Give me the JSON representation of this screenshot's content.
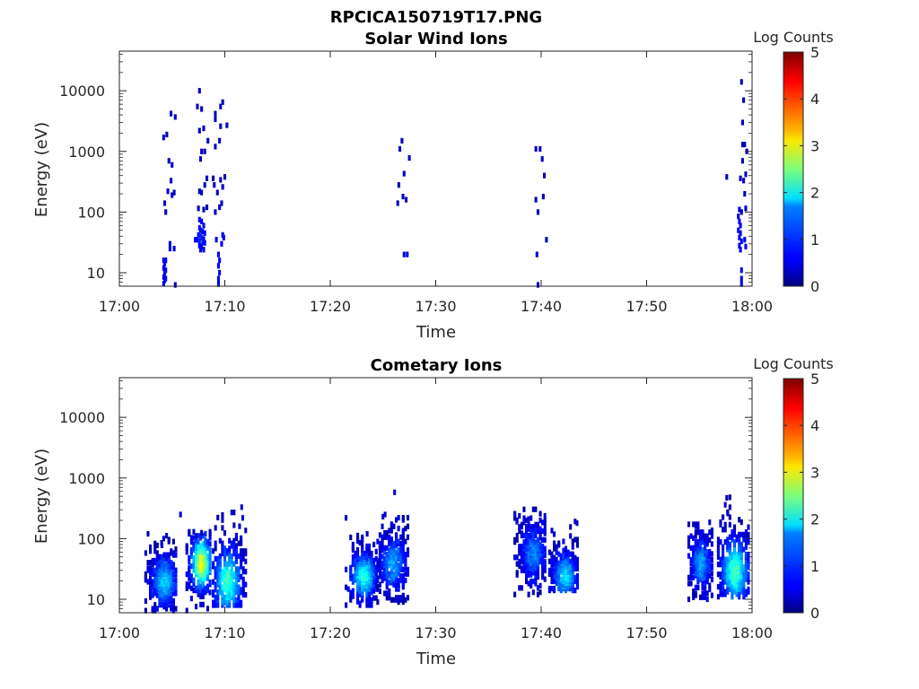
{
  "title": "RPCICA150719T17.PNG",
  "chart_data": [
    {
      "type": "heatmap",
      "title": "Solar Wind Ions",
      "xlabel": "Time",
      "ylabel": "Energy (eV)",
      "x_ticks": [
        "17:00",
        "17:10",
        "17:20",
        "17:30",
        "17:40",
        "17:50",
        "18:00"
      ],
      "y_ticks": [
        "10",
        "100",
        "1000",
        "10000"
      ],
      "y_scale": "log",
      "xlim": [
        "17:00",
        "18:00"
      ],
      "ylim": [
        6,
        45000
      ],
      "colorbar": {
        "label": "Log Counts",
        "ticks": [
          "0",
          "1",
          "2",
          "3",
          "4",
          "5"
        ],
        "range": [
          0,
          5
        ],
        "colormap": "jet"
      },
      "points": [
        {
          "t": 4.2,
          "e": 1700,
          "v": 0.3
        },
        {
          "t": 4.5,
          "e": 1900,
          "v": 0.3
        },
        {
          "t": 4.9,
          "e": 4200,
          "v": 0.3
        },
        {
          "t": 5.3,
          "e": 3700,
          "v": 0.3
        },
        {
          "t": 4.7,
          "e": 700,
          "v": 0.3
        },
        {
          "t": 5.0,
          "e": 600,
          "v": 0.3
        },
        {
          "t": 4.9,
          "e": 330,
          "v": 0.3
        },
        {
          "t": 4.6,
          "e": 220,
          "v": 0.3
        },
        {
          "t": 5.0,
          "e": 190,
          "v": 0.3
        },
        {
          "t": 5.2,
          "e": 210,
          "v": 0.3
        },
        {
          "t": 4.3,
          "e": 140,
          "v": 0.3
        },
        {
          "t": 4.4,
          "e": 100,
          "v": 0.3
        },
        {
          "t": 4.8,
          "e": 30,
          "v": 0.5
        },
        {
          "t": 4.8,
          "e": 25,
          "v": 0.5
        },
        {
          "t": 5.2,
          "e": 25,
          "v": 0.5
        },
        {
          "t": 4.2,
          "e": 16,
          "v": 0.6
        },
        {
          "t": 4.3,
          "e": 14,
          "v": 0.6
        },
        {
          "t": 4.4,
          "e": 16,
          "v": 0.6
        },
        {
          "t": 4.2,
          "e": 12,
          "v": 0.5
        },
        {
          "t": 4.3,
          "e": 10,
          "v": 0.5
        },
        {
          "t": 4.4,
          "e": 11,
          "v": 0.5
        },
        {
          "t": 4.2,
          "e": 8.5,
          "v": 0.5
        },
        {
          "t": 4.3,
          "e": 7.5,
          "v": 0.5
        },
        {
          "t": 4.4,
          "e": 8,
          "v": 0.5
        },
        {
          "t": 4.2,
          "e": 6.6,
          "v": 0.4
        },
        {
          "t": 5.3,
          "e": 6.3,
          "v": 0.3
        },
        {
          "t": 7.6,
          "e": 10000,
          "v": 0.3
        },
        {
          "t": 7.4,
          "e": 5500,
          "v": 0.3
        },
        {
          "t": 7.8,
          "e": 5000,
          "v": 0.3
        },
        {
          "t": 8.0,
          "e": 2400,
          "v": 0.3
        },
        {
          "t": 7.6,
          "e": 2200,
          "v": 0.3
        },
        {
          "t": 8.4,
          "e": 1500,
          "v": 0.3
        },
        {
          "t": 7.8,
          "e": 1000,
          "v": 0.3
        },
        {
          "t": 8.1,
          "e": 1000,
          "v": 0.3
        },
        {
          "t": 7.7,
          "e": 750,
          "v": 0.3
        },
        {
          "t": 8.3,
          "e": 360,
          "v": 0.3
        },
        {
          "t": 8.1,
          "e": 280,
          "v": 0.3
        },
        {
          "t": 7.6,
          "e": 220,
          "v": 0.3
        },
        {
          "t": 7.8,
          "e": 210,
          "v": 0.3
        },
        {
          "t": 7.5,
          "e": 115,
          "v": 0.3
        },
        {
          "t": 8.0,
          "e": 110,
          "v": 0.3
        },
        {
          "t": 8.3,
          "e": 120,
          "v": 0.3
        },
        {
          "t": 7.6,
          "e": 75,
          "v": 0.6
        },
        {
          "t": 7.8,
          "e": 70,
          "v": 0.6
        },
        {
          "t": 8.0,
          "e": 60,
          "v": 0.6
        },
        {
          "t": 7.6,
          "e": 55,
          "v": 0.7
        },
        {
          "t": 7.7,
          "e": 50,
          "v": 0.7
        },
        {
          "t": 7.9,
          "e": 48,
          "v": 0.7
        },
        {
          "t": 8.1,
          "e": 45,
          "v": 0.6
        },
        {
          "t": 7.5,
          "e": 42,
          "v": 0.7
        },
        {
          "t": 7.7,
          "e": 40,
          "v": 0.8
        },
        {
          "t": 7.8,
          "e": 38,
          "v": 0.8
        },
        {
          "t": 8.0,
          "e": 36,
          "v": 0.7
        },
        {
          "t": 7.2,
          "e": 35,
          "v": 0.6
        },
        {
          "t": 7.4,
          "e": 35,
          "v": 0.6
        },
        {
          "t": 7.6,
          "e": 33,
          "v": 0.8
        },
        {
          "t": 7.9,
          "e": 32,
          "v": 0.7
        },
        {
          "t": 8.1,
          "e": 31,
          "v": 0.6
        },
        {
          "t": 7.6,
          "e": 28,
          "v": 0.6
        },
        {
          "t": 7.8,
          "e": 27,
          "v": 0.6
        },
        {
          "t": 7.7,
          "e": 24,
          "v": 0.5
        },
        {
          "t": 8.0,
          "e": 24,
          "v": 0.5
        },
        {
          "t": 9.1,
          "e": 4200,
          "v": 0.3
        },
        {
          "t": 9.8,
          "e": 6500,
          "v": 0.3
        },
        {
          "t": 9.6,
          "e": 5500,
          "v": 0.3
        },
        {
          "t": 9.1,
          "e": 3400,
          "v": 0.3
        },
        {
          "t": 9.6,
          "e": 2600,
          "v": 0.3
        },
        {
          "t": 10.2,
          "e": 2700,
          "v": 0.3
        },
        {
          "t": 9.5,
          "e": 1500,
          "v": 0.3
        },
        {
          "t": 9.1,
          "e": 1200,
          "v": 0.3
        },
        {
          "t": 8.9,
          "e": 360,
          "v": 0.3
        },
        {
          "t": 9.6,
          "e": 340,
          "v": 0.3
        },
        {
          "t": 10.0,
          "e": 380,
          "v": 0.3
        },
        {
          "t": 9.0,
          "e": 280,
          "v": 0.3
        },
        {
          "t": 9.8,
          "e": 260,
          "v": 0.3
        },
        {
          "t": 9.3,
          "e": 210,
          "v": 0.3
        },
        {
          "t": 9.7,
          "e": 140,
          "v": 0.3
        },
        {
          "t": 9.5,
          "e": 120,
          "v": 0.3
        },
        {
          "t": 9.1,
          "e": 100,
          "v": 0.3
        },
        {
          "t": 9.8,
          "e": 42,
          "v": 0.5
        },
        {
          "t": 9.9,
          "e": 38,
          "v": 0.5
        },
        {
          "t": 9.2,
          "e": 35,
          "v": 0.5
        },
        {
          "t": 9.7,
          "e": 30,
          "v": 0.5
        },
        {
          "t": 9.4,
          "e": 20,
          "v": 0.5
        },
        {
          "t": 9.5,
          "e": 16,
          "v": 0.6
        },
        {
          "t": 9.4,
          "e": 13,
          "v": 0.6
        },
        {
          "t": 9.5,
          "e": 10,
          "v": 0.6
        },
        {
          "t": 9.4,
          "e": 8,
          "v": 0.5
        },
        {
          "t": 9.4,
          "e": 6.5,
          "v": 0.5
        },
        {
          "t": 26.8,
          "e": 1500,
          "v": 0.3
        },
        {
          "t": 26.6,
          "e": 1100,
          "v": 0.3
        },
        {
          "t": 27.5,
          "e": 780,
          "v": 0.3
        },
        {
          "t": 27.0,
          "e": 430,
          "v": 0.3
        },
        {
          "t": 26.5,
          "e": 280,
          "v": 0.3
        },
        {
          "t": 26.9,
          "e": 180,
          "v": 0.3
        },
        {
          "t": 27.2,
          "e": 160,
          "v": 0.3
        },
        {
          "t": 26.4,
          "e": 140,
          "v": 0.3
        },
        {
          "t": 27.0,
          "e": 20,
          "v": 0.5
        },
        {
          "t": 27.3,
          "e": 20,
          "v": 0.5
        },
        {
          "t": 39.5,
          "e": 1100,
          "v": 0.3
        },
        {
          "t": 39.9,
          "e": 1100,
          "v": 0.3
        },
        {
          "t": 40.1,
          "e": 750,
          "v": 0.3
        },
        {
          "t": 40.3,
          "e": 400,
          "v": 0.3
        },
        {
          "t": 40.2,
          "e": 180,
          "v": 0.3
        },
        {
          "t": 39.5,
          "e": 160,
          "v": 0.3
        },
        {
          "t": 39.7,
          "e": 100,
          "v": 0.3
        },
        {
          "t": 40.5,
          "e": 35,
          "v": 0.4
        },
        {
          "t": 39.6,
          "e": 20,
          "v": 0.5
        },
        {
          "t": 39.7,
          "e": 6.3,
          "v": 0.3
        },
        {
          "t": 59.0,
          "e": 14000,
          "v": 0.3
        },
        {
          "t": 59.2,
          "e": 7000,
          "v": 0.3
        },
        {
          "t": 59.1,
          "e": 3000,
          "v": 0.3
        },
        {
          "t": 59.3,
          "e": 1300,
          "v": 0.3
        },
        {
          "t": 59.1,
          "e": 1300,
          "v": 0.3
        },
        {
          "t": 59.5,
          "e": 1000,
          "v": 0.3
        },
        {
          "t": 59.1,
          "e": 700,
          "v": 0.3
        },
        {
          "t": 59.4,
          "e": 420,
          "v": 0.3
        },
        {
          "t": 58.9,
          "e": 360,
          "v": 0.3
        },
        {
          "t": 59.2,
          "e": 330,
          "v": 0.3
        },
        {
          "t": 57.6,
          "e": 380,
          "v": 0.3
        },
        {
          "t": 59.3,
          "e": 200,
          "v": 0.3
        },
        {
          "t": 58.8,
          "e": 110,
          "v": 0.4
        },
        {
          "t": 59.0,
          "e": 100,
          "v": 0.4
        },
        {
          "t": 59.4,
          "e": 115,
          "v": 0.3
        },
        {
          "t": 58.7,
          "e": 85,
          "v": 0.5
        },
        {
          "t": 58.8,
          "e": 70,
          "v": 0.6
        },
        {
          "t": 58.9,
          "e": 60,
          "v": 0.6
        },
        {
          "t": 58.7,
          "e": 50,
          "v": 0.6
        },
        {
          "t": 58.9,
          "e": 45,
          "v": 0.6
        },
        {
          "t": 58.8,
          "e": 38,
          "v": 0.6
        },
        {
          "t": 59.0,
          "e": 33,
          "v": 0.6
        },
        {
          "t": 59.3,
          "e": 35,
          "v": 0.5
        },
        {
          "t": 58.8,
          "e": 28,
          "v": 0.6
        },
        {
          "t": 58.9,
          "e": 24,
          "v": 0.5
        },
        {
          "t": 59.4,
          "e": 27,
          "v": 0.5
        },
        {
          "t": 59.0,
          "e": 11,
          "v": 0.5
        },
        {
          "t": 59.0,
          "e": 8,
          "v": 0.5
        },
        {
          "t": 59.0,
          "e": 6.5,
          "v": 0.5
        }
      ]
    },
    {
      "type": "heatmap",
      "title": "Cometary Ions",
      "xlabel": "Time",
      "ylabel": "Energy (eV)",
      "x_ticks": [
        "17:00",
        "17:10",
        "17:20",
        "17:30",
        "17:40",
        "17:50",
        "18:00"
      ],
      "y_ticks": [
        "10",
        "100",
        "1000",
        "10000"
      ],
      "y_scale": "log",
      "xlim": [
        "17:00",
        "18:00"
      ],
      "ylim": [
        6,
        45000
      ],
      "colorbar": {
        "label": "Log Counts",
        "ticks": [
          "0",
          "1",
          "2",
          "3",
          "4",
          "5"
        ],
        "range": [
          0,
          5
        ],
        "colormap": "jet"
      },
      "bursts": [
        {
          "t0": 2.5,
          "t1": 5.5,
          "emin": 6.5,
          "emax": 120,
          "peak_t": 4.3,
          "peak_e": 20,
          "peak_v": 1.4,
          "outliers": [
            [
              5.8,
              250
            ],
            [
              4.2,
              100
            ],
            [
              4.0,
              85
            ]
          ]
        },
        {
          "t0": 6.4,
          "t1": 8.8,
          "emin": 6.5,
          "emax": 140,
          "peak_t": 7.8,
          "peak_e": 40,
          "peak_v": 2.8,
          "outliers": [
            [
              7.3,
              110
            ],
            [
              7.8,
              125
            ]
          ]
        },
        {
          "t0": 8.9,
          "t1": 12.0,
          "emin": 8,
          "emax": 400,
          "peak_t": 10.3,
          "peak_e": 20,
          "peak_v": 1.9,
          "outliers": [
            [
              11.6,
              330
            ],
            [
              11.7,
              220
            ],
            [
              11.4,
              160
            ]
          ]
        },
        {
          "t0": 21.5,
          "t1": 24.5,
          "emin": 8,
          "emax": 120,
          "peak_t": 23.2,
          "peak_e": 25,
          "peak_v": 1.8,
          "outliers": [
            [
              21.5,
              220
            ],
            [
              23.5,
              120
            ]
          ]
        },
        {
          "t0": 24.5,
          "t1": 27.5,
          "emin": 9,
          "emax": 240,
          "peak_t": 26.0,
          "peak_e": 40,
          "peak_v": 1.2,
          "outliers": [
            [
              26.1,
              580
            ],
            [
              25.2,
              250
            ],
            [
              25.0,
              230
            ]
          ]
        },
        {
          "t0": 37.5,
          "t1": 40.5,
          "emin": 12,
          "emax": 330,
          "peak_t": 39.3,
          "peak_e": 60,
          "peak_v": 1.0,
          "outliers": [
            [
              38.8,
              210
            ],
            [
              37.7,
              190
            ]
          ]
        },
        {
          "t0": 40.8,
          "t1": 43.6,
          "emin": 14,
          "emax": 220,
          "peak_t": 42.3,
          "peak_e": 25,
          "peak_v": 1.5,
          "outliers": [
            [
              43.4,
              180
            ]
          ]
        },
        {
          "t0": 54.0,
          "t1": 56.3,
          "emin": 10,
          "emax": 200,
          "peak_t": 55.2,
          "peak_e": 40,
          "peak_v": 1.2,
          "outliers": [
            [
              55.4,
              110
            ]
          ]
        },
        {
          "t0": 56.8,
          "t1": 59.8,
          "emin": 11,
          "emax": 480,
          "peak_t": 58.4,
          "peak_e": 30,
          "peak_v": 2.0,
          "outliers": [
            [
              57.6,
              470
            ],
            [
              57.7,
              260
            ]
          ]
        }
      ]
    }
  ]
}
